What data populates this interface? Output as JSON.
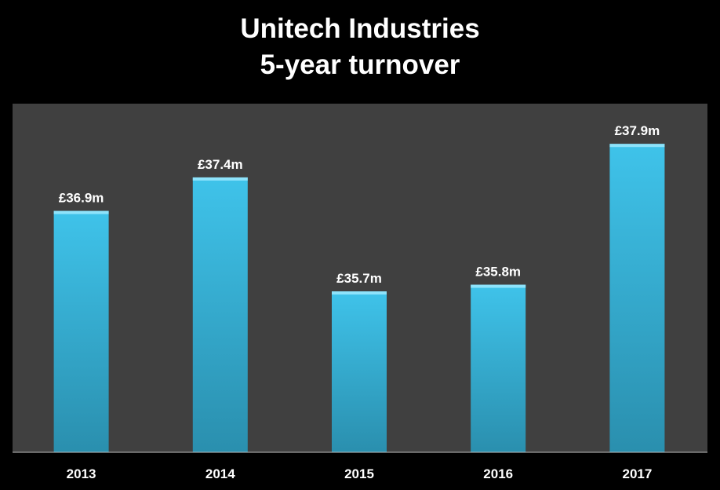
{
  "chart_data": {
    "type": "bar",
    "title_line1": "Unitech Industries",
    "title_line2": "5-year turnover",
    "categories": [
      "2013",
      "2014",
      "2015",
      "2016",
      "2017"
    ],
    "values": [
      36.9,
      37.4,
      35.7,
      35.8,
      37.9
    ],
    "data_labels": [
      "£36.9m",
      "£37.4m",
      "£35.7m",
      "£35.8m",
      "£37.9m"
    ],
    "ylim": [
      33.3,
      38.5
    ],
    "xlabel": "",
    "ylabel": "",
    "grid": false,
    "legend": "none",
    "colors": {
      "background": "#000000",
      "plot_area": "#404040",
      "bar_top": "#3fc3ea",
      "bar_bottom": "#2a8fae",
      "bar_cap": "#8ee3fb",
      "text": "#ffffff",
      "axis_line": "#bfbfbf"
    }
  }
}
